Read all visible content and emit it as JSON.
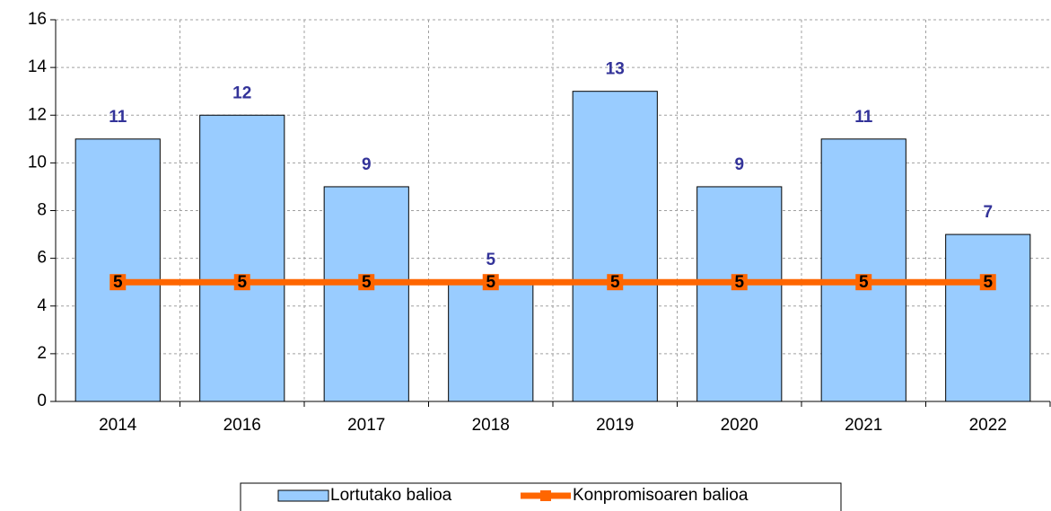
{
  "chart_data": {
    "type": "bar",
    "categories": [
      "2014",
      "2016",
      "2017",
      "2018",
      "2019",
      "2020",
      "2021",
      "2022"
    ],
    "series": [
      {
        "name": "Lortutako balioa",
        "type": "bar",
        "color": "#99ccff",
        "label_color": "#333399",
        "values": [
          11,
          12,
          9,
          5,
          13,
          9,
          11,
          7
        ]
      },
      {
        "name": "Konpromisoaren balioa",
        "type": "line",
        "color": "#ff6600",
        "label_color": "#000000",
        "values": [
          5,
          5,
          5,
          5,
          5,
          5,
          5,
          5
        ]
      }
    ],
    "ylim": [
      0,
      16
    ],
    "yticks": [
      0,
      2,
      4,
      6,
      8,
      10,
      12,
      14,
      16
    ],
    "grid": true,
    "legend": "bottom"
  }
}
